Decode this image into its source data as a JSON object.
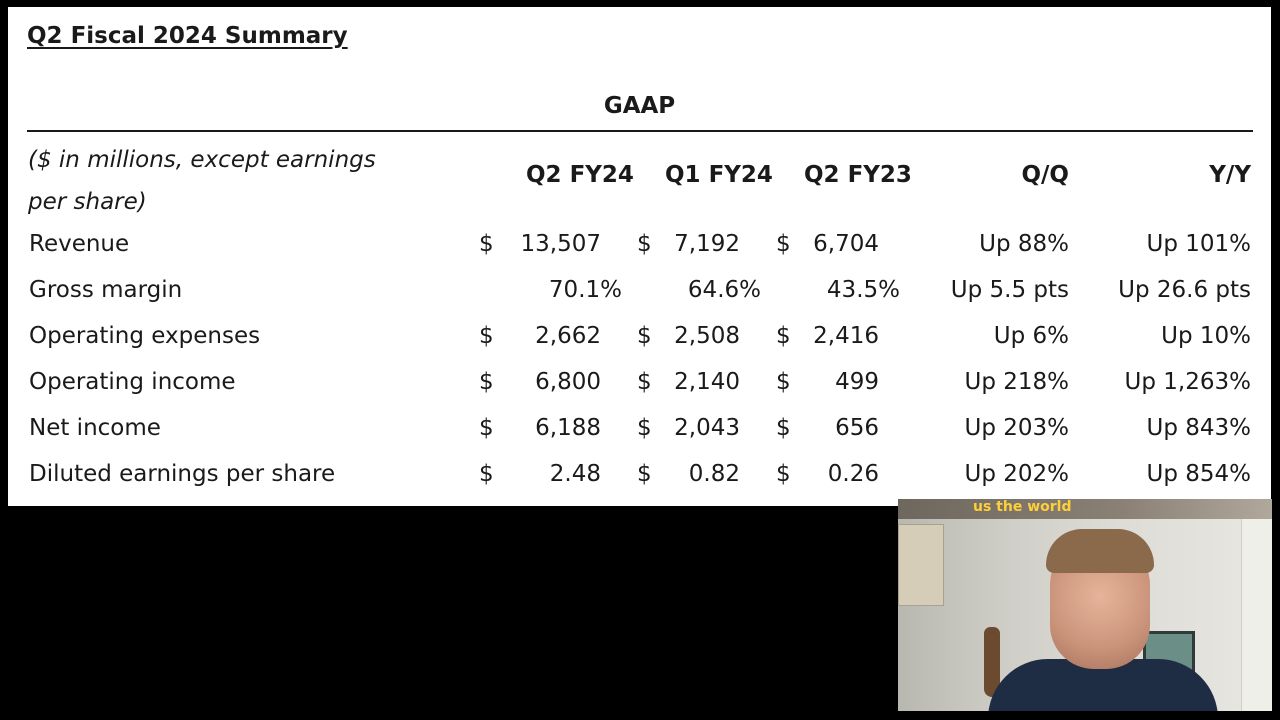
{
  "title": "Q2 Fiscal 2024 Summary",
  "section": "GAAP",
  "unit_note": "($ in millions, except earnings per share)",
  "columns": [
    "Q2 FY24",
    "Q1 FY24",
    "Q2 FY23",
    "Q/Q",
    "Y/Y"
  ],
  "rows": [
    {
      "label": "Revenue",
      "q2fy24": "13,507",
      "q1fy24": "7,192",
      "q2fy23": "6,704",
      "qq": "Up 88%",
      "yy": "Up 101%"
    },
    {
      "label": "Gross margin",
      "q2fy24": "70.1%",
      "q1fy24": "64.6%",
      "q2fy23": "43.5%",
      "qq": "Up 5.5 pts",
      "yy": "Up 26.6 pts"
    },
    {
      "label": "Operating expenses",
      "q2fy24": "2,662",
      "q1fy24": "2,508",
      "q2fy23": "2,416",
      "qq": "Up 6%",
      "yy": "Up 10%"
    },
    {
      "label": "Operating income",
      "q2fy24": "6,800",
      "q1fy24": "2,140",
      "q2fy23": "499",
      "qq": "Up 218%",
      "yy": "Up 1,263%"
    },
    {
      "label": "Net income",
      "q2fy24": "6,188",
      "q1fy24": "2,043",
      "q2fy23": "656",
      "qq": "Up 203%",
      "yy": "Up 843%"
    },
    {
      "label": "Diluted earnings per share",
      "q2fy24": "2.48",
      "q1fy24": "0.82",
      "q2fy23": "0.26",
      "qq": "Up 202%",
      "yy": "Up 854%"
    }
  ],
  "currency_symbol": "$",
  "webcam": {
    "banner_text": "us the world"
  }
}
